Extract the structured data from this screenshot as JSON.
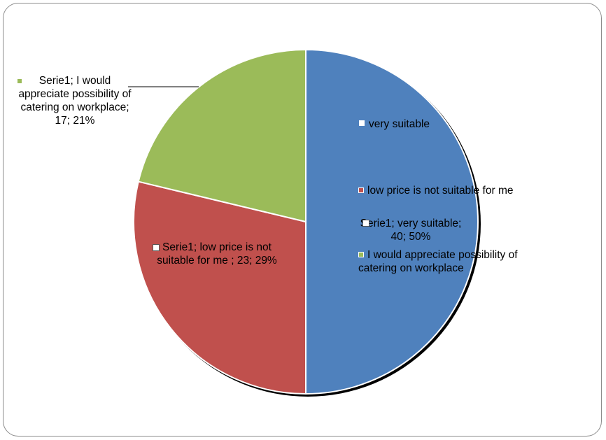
{
  "colors": {
    "blue": "#4F81BD",
    "red": "#C0504D",
    "green": "#9BBB59"
  },
  "chart_data": {
    "type": "pie",
    "title": "",
    "slices": [
      {
        "label": "very suitable",
        "value": 40,
        "percent": 50,
        "color": "#4F81BD",
        "data_label": "Serie1; very suitable; 40; 50%"
      },
      {
        "label": "low price is not suitable for me",
        "value": 23,
        "percent": 29,
        "color": "#C0504D",
        "data_label": "Serie1; low price is not suitable for me ; 23; 29%"
      },
      {
        "label": "I would appreciate possibility of catering on workplace",
        "value": 17,
        "percent": 21,
        "color": "#9BBB59",
        "data_label": "Serie1; I would appreciate possibility of catering on workplace; 17; 21%"
      }
    ],
    "legend": {
      "position": "inside-right",
      "entries": [
        "very suitable",
        "low price is not suitable for me",
        "I would appreciate possibility of catering on workplace"
      ]
    }
  }
}
